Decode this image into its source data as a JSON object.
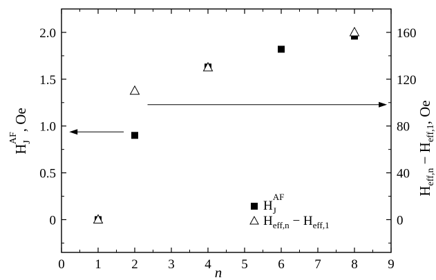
{
  "chart_data": {
    "type": "scatter",
    "xlabel": "n",
    "ylabel_left": "H_J^AF, Oe",
    "ylabel_right": "H_eff,n − H_eff,1, Oe",
    "xlim": [
      0,
      9
    ],
    "ylim_left": [
      -0.35,
      2.25
    ],
    "ylim_right": [
      -28,
      180
    ],
    "x_ticks": [
      "0",
      "1",
      "2",
      "3",
      "4",
      "5",
      "6",
      "7",
      "8",
      "9"
    ],
    "y_left_ticks": [
      "0",
      "0.5",
      "1.0",
      "1.5",
      "2.0"
    ],
    "y_right_ticks": [
      "0",
      "40",
      "80",
      "120",
      "160"
    ],
    "grid": false,
    "legend_position": "bottom-right",
    "series": [
      {
        "id": "hj",
        "axis": "left",
        "marker": "filled-square",
        "legend_main": "H",
        "legend_sub": "J",
        "legend_sup": "AF",
        "x": [
          1,
          2,
          4,
          6,
          8
        ],
        "y": [
          0,
          0.9,
          1.63,
          1.82,
          1.96
        ]
      },
      {
        "id": "heff",
        "axis": "right",
        "marker": "open-triangle",
        "legend_main_a": "H",
        "legend_sub_a": "eff,n",
        "legend_dash": " − ",
        "legend_main_b": "H",
        "legend_sub_b": "eff,1",
        "x": [
          1,
          2,
          4,
          8
        ],
        "y": [
          0,
          110,
          130,
          160
        ]
      }
    ],
    "annotations": [
      {
        "type": "arrow",
        "direction": "left",
        "points_to": "left-axis",
        "near_series": "hj"
      },
      {
        "type": "arrow",
        "direction": "right",
        "points_to": "right-axis",
        "near_series": "heff"
      }
    ],
    "ylabel_left_parts": {
      "main": "H",
      "sub": "J",
      "sup": "AF",
      "rest": ", Oe"
    },
    "ylabel_right_parts": {
      "main_a": "H",
      "sub_a": "eff,n",
      "dash": " − ",
      "main_b": "H",
      "sub_b": "eff,1",
      "rest": ", Oe"
    }
  }
}
